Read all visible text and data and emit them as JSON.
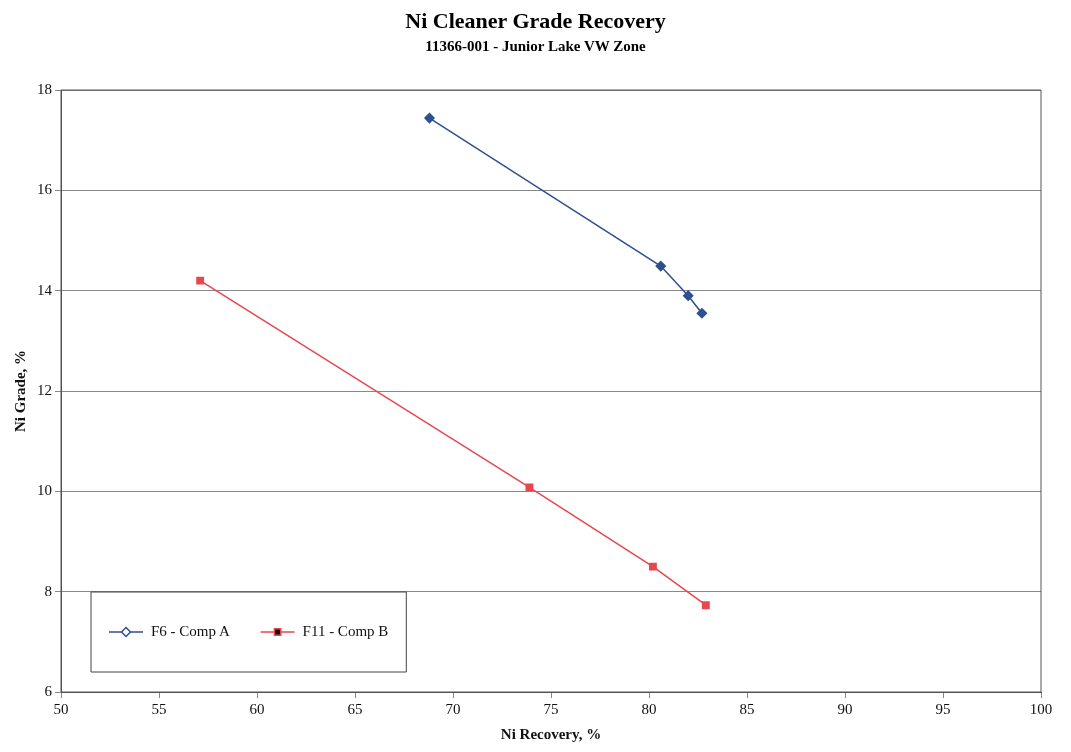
{
  "chart_data": {
    "type": "line",
    "title": "Ni Cleaner Grade Recovery",
    "subtitle": "11366-001 - Junior Lake VW Zone",
    "xlabel": "Ni Recovery, %",
    "ylabel": "Ni Grade, %",
    "xlim": [
      50,
      100
    ],
    "xticks": [
      50,
      55,
      60,
      65,
      70,
      75,
      80,
      85,
      90,
      95,
      100
    ],
    "ylim": [
      6,
      18
    ],
    "yticks": [
      6,
      8,
      10,
      12,
      14,
      16,
      18
    ],
    "grid": "y",
    "legend": "bottom left",
    "line_style": "solid",
    "series": [
      {
        "name": "F6 - Comp A",
        "color": "#2f4f8f",
        "marker": "diamond",
        "x": [
          68.8,
          80.6,
          82.0,
          82.7
        ],
        "values": [
          17.44,
          14.49,
          13.9,
          13.55
        ]
      },
      {
        "name": "F11 - Comp B",
        "color": "#e8474f",
        "marker": "square",
        "x": [
          57.1,
          73.9,
          80.2,
          82.9
        ],
        "values": [
          14.2,
          10.08,
          8.5,
          7.73
        ]
      }
    ]
  }
}
